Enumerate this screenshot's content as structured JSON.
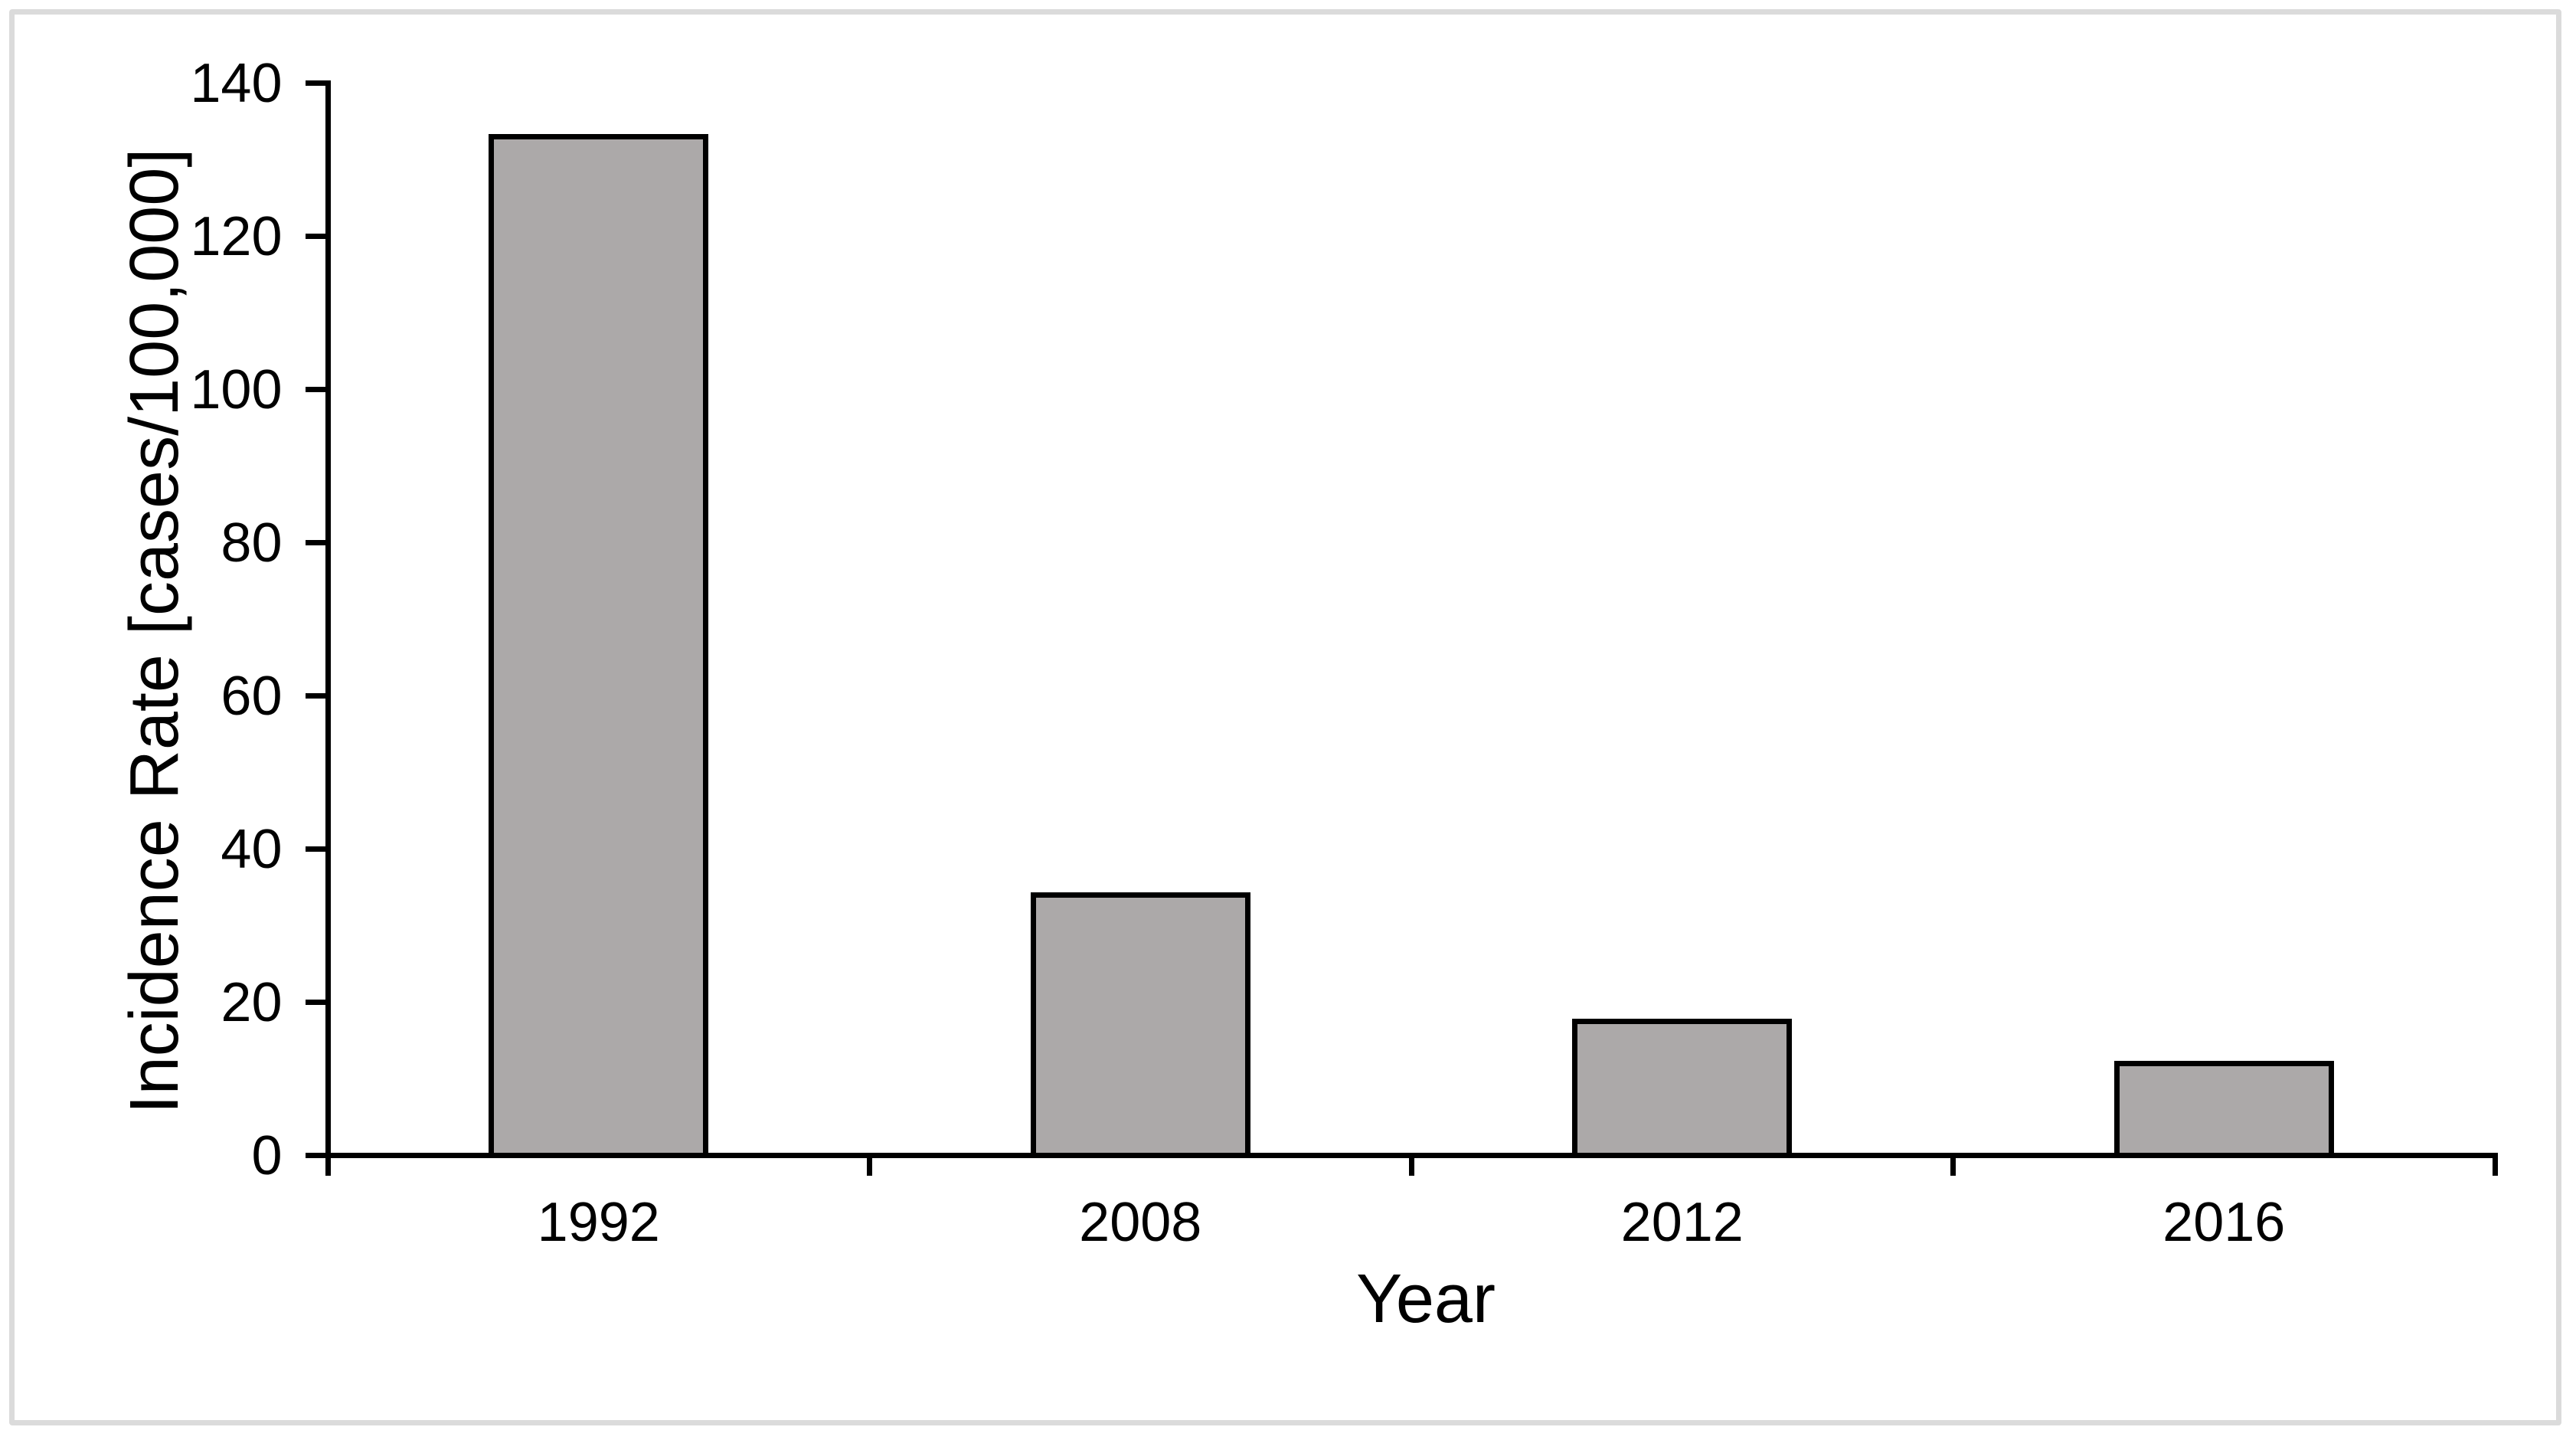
{
  "chart_data": {
    "type": "bar",
    "categories": [
      "1992",
      "2008",
      "2012",
      "2016"
    ],
    "values": [
      133,
      34,
      17.5,
      12
    ],
    "title": "",
    "xlabel": "Year",
    "ylabel": "Incidence Rate [cases/100,000]",
    "ylim": [
      0,
      140
    ],
    "yticks": [
      0,
      20,
      40,
      60,
      80,
      100,
      120,
      140
    ],
    "ytick_step": 20,
    "grid": false,
    "legend": "none",
    "colors": {
      "bar_fill": "#ACA9A9",
      "bar_border": "#000000",
      "axis": "#000000",
      "text": "#000000",
      "frame_border": "#DBDBDB",
      "background": "#FFFFFF"
    }
  }
}
